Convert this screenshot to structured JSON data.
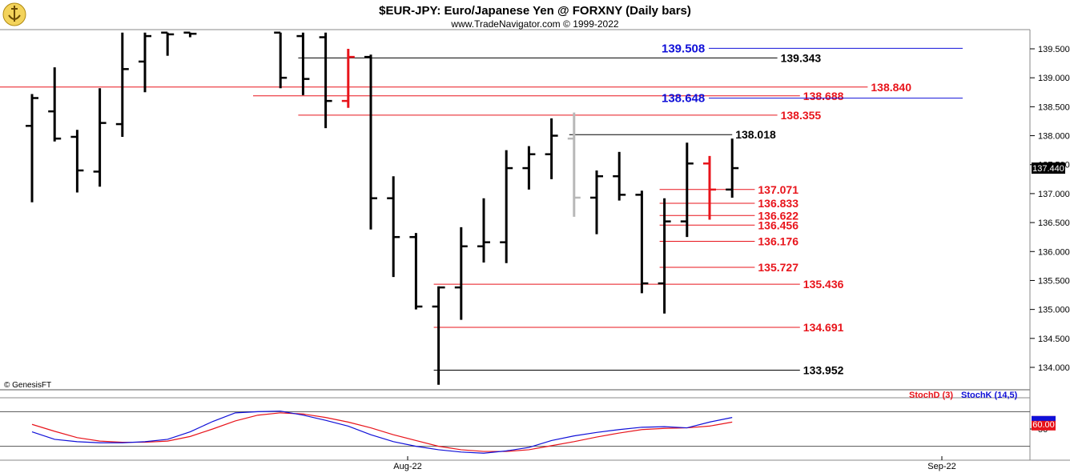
{
  "header": {
    "title": "$EUR-JPY:  Euro/Japanese Yen @ FORXNY  (Daily bars)",
    "subtitle": "www.TradeNavigator.com © 1999-2022",
    "logo_icon": "anchor-icon"
  },
  "footer": {
    "copyright": "© GenesisFT"
  },
  "colors": {
    "black": "#000000",
    "red": "#e8141b",
    "blue": "#1010d8",
    "gray": "#b8b8b8"
  },
  "chart_data": {
    "type": "bar",
    "subtype": "ohlc",
    "ylim": [
      133.7,
      139.78
    ],
    "yticks": [
      "134.000",
      "134.500",
      "135.000",
      "135.500",
      "136.000",
      "136.500",
      "137.000",
      "137.500",
      "138.000",
      "138.500",
      "139.000",
      "139.500"
    ],
    "last_price": "137.440",
    "x_labels": [
      "Aug-22",
      "Sep-22"
    ],
    "bars": [
      {
        "i": 0,
        "o": 138.17,
        "h": 138.72,
        "l": 136.85,
        "c": 138.65,
        "color": "black"
      },
      {
        "i": 1,
        "o": 138.42,
        "h": 139.18,
        "l": 137.9,
        "c": 137.95,
        "color": "black"
      },
      {
        "i": 2,
        "o": 137.98,
        "h": 138.1,
        "l": 137.02,
        "c": 137.4,
        "color": "black"
      },
      {
        "i": 3,
        "o": 137.38,
        "h": 138.82,
        "l": 137.12,
        "c": 138.22,
        "color": "black"
      },
      {
        "i": 4,
        "o": 138.2,
        "h": 139.78,
        "l": 137.98,
        "c": 139.15,
        "color": "black"
      },
      {
        "i": 5,
        "o": 139.28,
        "h": 139.78,
        "l": 138.75,
        "c": 139.72,
        "color": "black"
      },
      {
        "i": 6,
        "o": 139.78,
        "h": 139.78,
        "l": 139.38,
        "c": 139.75,
        "color": "black"
      },
      {
        "i": 7,
        "o": 139.78,
        "h": 139.78,
        "l": 139.7,
        "c": 139.76,
        "color": "black"
      },
      {
        "i": 11,
        "o": 139.78,
        "h": 139.78,
        "l": 138.82,
        "c": 139.0,
        "color": "black"
      },
      {
        "i": 12,
        "o": 139.72,
        "h": 139.78,
        "l": 138.7,
        "c": 138.98,
        "color": "black"
      },
      {
        "i": 13,
        "o": 139.7,
        "h": 139.78,
        "l": 138.13,
        "c": 138.6,
        "color": "black"
      },
      {
        "i": 14,
        "o": 138.6,
        "h": 139.5,
        "l": 138.48,
        "c": 139.36,
        "color": "red"
      },
      {
        "i": 15,
        "o": 139.36,
        "h": 139.4,
        "l": 136.38,
        "c": 136.92,
        "color": "black"
      },
      {
        "i": 16,
        "o": 136.92,
        "h": 137.3,
        "l": 135.56,
        "c": 136.25,
        "color": "black"
      },
      {
        "i": 17,
        "o": 136.25,
        "h": 136.32,
        "l": 135.0,
        "c": 135.05,
        "color": "black"
      },
      {
        "i": 18,
        "o": 135.05,
        "h": 135.4,
        "l": 133.7,
        "c": 135.38,
        "color": "black"
      },
      {
        "i": 19,
        "o": 135.38,
        "h": 136.42,
        "l": 134.82,
        "c": 136.09,
        "color": "black"
      },
      {
        "i": 20,
        "o": 136.09,
        "h": 136.92,
        "l": 135.81,
        "c": 136.16,
        "color": "black"
      },
      {
        "i": 21,
        "o": 136.16,
        "h": 137.75,
        "l": 135.8,
        "c": 137.44,
        "color": "black"
      },
      {
        "i": 22,
        "o": 137.44,
        "h": 137.82,
        "l": 137.07,
        "c": 137.68,
        "color": "black"
      },
      {
        "i": 23,
        "o": 137.68,
        "h": 138.3,
        "l": 137.25,
        "c": 138.0,
        "color": "black"
      },
      {
        "i": 24,
        "o": 137.95,
        "h": 138.4,
        "l": 136.6,
        "c": 136.93,
        "color": "gray"
      },
      {
        "i": 25,
        "o": 136.93,
        "h": 137.4,
        "l": 136.3,
        "c": 137.3,
        "color": "black"
      },
      {
        "i": 26,
        "o": 137.3,
        "h": 137.72,
        "l": 136.88,
        "c": 136.98,
        "color": "black"
      },
      {
        "i": 27,
        "o": 136.98,
        "h": 137.05,
        "l": 135.28,
        "c": 135.45,
        "color": "black"
      },
      {
        "i": 28,
        "o": 135.45,
        "h": 136.92,
        "l": 134.93,
        "c": 136.52,
        "color": "black"
      },
      {
        "i": 29,
        "o": 136.52,
        "h": 137.88,
        "l": 136.25,
        "c": 137.52,
        "color": "black"
      },
      {
        "i": 30,
        "o": 137.52,
        "h": 137.65,
        "l": 136.55,
        "c": 137.07,
        "color": "red"
      },
      {
        "i": 31,
        "o": 137.07,
        "h": 137.95,
        "l": 136.93,
        "c": 137.44,
        "color": "black"
      }
    ],
    "levels": [
      {
        "value": "139.508",
        "color": "blue",
        "x_from": 23,
        "x_to": 40,
        "label_at": "left"
      },
      {
        "value": "139.343",
        "color": "black",
        "x_from": 12,
        "x_to": 33,
        "label_at": "right"
      },
      {
        "value": "138.840",
        "color": "red",
        "x_from": -1,
        "x_to": 37,
        "label_at": "right"
      },
      {
        "value": "138.688",
        "color": "red",
        "x_from": 10,
        "x_to": 34,
        "label_at": "right"
      },
      {
        "value": "138.648",
        "color": "blue",
        "x_from": 23,
        "x_to": 40,
        "label_at": "left"
      },
      {
        "value": "138.355",
        "color": "red",
        "x_from": 12,
        "x_to": 33,
        "label_at": "right"
      },
      {
        "value": "138.018",
        "color": "black",
        "x_from": 24,
        "x_to": 31,
        "label_at": "right"
      },
      {
        "value": "137.071",
        "color": "red",
        "x_from": 28,
        "x_to": 32,
        "label_at": "right"
      },
      {
        "value": "136.833",
        "color": "red",
        "x_from": 28,
        "x_to": 32,
        "label_at": "right"
      },
      {
        "value": "136.622",
        "color": "red",
        "x_from": 28,
        "x_to": 32,
        "label_at": "right"
      },
      {
        "value": "136.456",
        "color": "red",
        "x_from": 28,
        "x_to": 32,
        "label_at": "right"
      },
      {
        "value": "136.176",
        "color": "red",
        "x_from": 28,
        "x_to": 32,
        "label_at": "right"
      },
      {
        "value": "135.727",
        "color": "red",
        "x_from": 28,
        "x_to": 32,
        "label_at": "right"
      },
      {
        "value": "135.436",
        "color": "red",
        "x_from": 18,
        "x_to": 34,
        "label_at": "right"
      },
      {
        "value": "134.691",
        "color": "red",
        "x_from": 18,
        "x_to": 34,
        "label_at": "right"
      },
      {
        "value": "133.952",
        "color": "black",
        "x_from": 18,
        "x_to": 34,
        "label_at": "right"
      }
    ],
    "indicator": {
      "ylim": [
        0,
        100
      ],
      "tick_labels": [
        "50"
      ],
      "legend": [
        {
          "name": "StochD (3)",
          "color": "red"
        },
        {
          "name": "StochK (14,5)",
          "color": "blue"
        }
      ],
      "last_value": "60.00",
      "stochK": [
        45,
        32,
        28,
        26,
        26,
        28,
        32,
        45,
        63,
        78,
        80,
        81,
        74,
        65,
        55,
        40,
        28,
        20,
        14,
        10,
        8,
        12,
        18,
        30,
        38,
        44,
        49,
        53,
        54,
        52,
        62,
        70
      ],
      "stochD": [
        58,
        46,
        35,
        29,
        27,
        27,
        29,
        37,
        50,
        64,
        74,
        78,
        76,
        70,
        62,
        52,
        40,
        30,
        20,
        14,
        11,
        11,
        14,
        21,
        28,
        36,
        43,
        49,
        51,
        52,
        55,
        62
      ]
    }
  }
}
